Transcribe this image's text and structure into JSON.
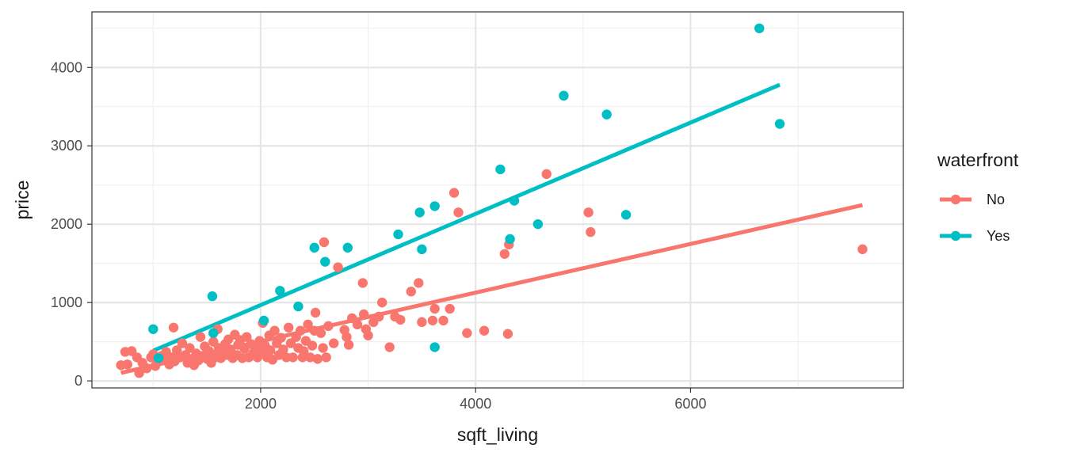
{
  "chart_data": {
    "type": "scatter",
    "title": "",
    "xlabel": "sqft_living",
    "ylabel": "price",
    "xlim": [
      430,
      7980
    ],
    "ylim": [
      -90,
      4710
    ],
    "x_ticks": [
      2000,
      4000,
      6000
    ],
    "y_ticks": [
      0,
      1000,
      2000,
      3000,
      4000
    ],
    "x_tick_labels": [
      "2000",
      "4000",
      "6000"
    ],
    "y_tick_labels": [
      "0",
      "1000",
      "2000",
      "3000",
      "4000"
    ],
    "grid": true,
    "legend": {
      "title": "waterfront",
      "position": "right"
    },
    "series": [
      {
        "name": "No",
        "color": "#F8766D",
        "points": [
          [
            700,
            200
          ],
          [
            740,
            370
          ],
          [
            760,
            210
          ],
          [
            800,
            380
          ],
          [
            850,
            300
          ],
          [
            870,
            100
          ],
          [
            900,
            230
          ],
          [
            940,
            160
          ],
          [
            980,
            300
          ],
          [
            1000,
            340
          ],
          [
            1020,
            190
          ],
          [
            1050,
            260
          ],
          [
            1080,
            320
          ],
          [
            1100,
            280
          ],
          [
            1120,
            370
          ],
          [
            1150,
            210
          ],
          [
            1170,
            300
          ],
          [
            1190,
            680
          ],
          [
            1200,
            250
          ],
          [
            1220,
            390
          ],
          [
            1250,
            300
          ],
          [
            1270,
            480
          ],
          [
            1300,
            330
          ],
          [
            1320,
            230
          ],
          [
            1340,
            420
          ],
          [
            1360,
            280
          ],
          [
            1380,
            200
          ],
          [
            1400,
            350
          ],
          [
            1420,
            260
          ],
          [
            1440,
            560
          ],
          [
            1460,
            320
          ],
          [
            1480,
            440
          ],
          [
            1500,
            280
          ],
          [
            1520,
            380
          ],
          [
            1540,
            230
          ],
          [
            1560,
            500
          ],
          [
            1580,
            300
          ],
          [
            1600,
            660
          ],
          [
            1610,
            420
          ],
          [
            1630,
            290
          ],
          [
            1650,
            360
          ],
          [
            1670,
            470
          ],
          [
            1690,
            330
          ],
          [
            1700,
            530
          ],
          [
            1720,
            400
          ],
          [
            1740,
            290
          ],
          [
            1760,
            590
          ],
          [
            1780,
            330
          ],
          [
            1790,
            460
          ],
          [
            1810,
            520
          ],
          [
            1830,
            290
          ],
          [
            1850,
            410
          ],
          [
            1870,
            560
          ],
          [
            1890,
            300
          ],
          [
            1910,
            470
          ],
          [
            1930,
            350
          ],
          [
            1950,
            420
          ],
          [
            1970,
            300
          ],
          [
            1990,
            510
          ],
          [
            2010,
            380
          ],
          [
            2020,
            740
          ],
          [
            2040,
            450
          ],
          [
            2060,
            300
          ],
          [
            2080,
            580
          ],
          [
            2090,
            390
          ],
          [
            2110,
            270
          ],
          [
            2130,
            640
          ],
          [
            2150,
            480
          ],
          [
            2170,
            330
          ],
          [
            2190,
            550
          ],
          [
            2210,
            400
          ],
          [
            2240,
            300
          ],
          [
            2260,
            680
          ],
          [
            2280,
            480
          ],
          [
            2300,
            300
          ],
          [
            2330,
            560
          ],
          [
            2350,
            420
          ],
          [
            2370,
            640
          ],
          [
            2390,
            300
          ],
          [
            2400,
            380
          ],
          [
            2420,
            510
          ],
          [
            2440,
            720
          ],
          [
            2460,
            300
          ],
          [
            2480,
            450
          ],
          [
            2500,
            640
          ],
          [
            2510,
            870
          ],
          [
            2530,
            280
          ],
          [
            2560,
            610
          ],
          [
            2580,
            420
          ],
          [
            2590,
            1770
          ],
          [
            2610,
            300
          ],
          [
            2630,
            700
          ],
          [
            2680,
            480
          ],
          [
            2720,
            1450
          ],
          [
            2780,
            650
          ],
          [
            2800,
            560
          ],
          [
            2820,
            460
          ],
          [
            2850,
            800
          ],
          [
            2900,
            720
          ],
          [
            2950,
            1250
          ],
          [
            2960,
            850
          ],
          [
            2980,
            660
          ],
          [
            3000,
            580
          ],
          [
            3050,
            750
          ],
          [
            3100,
            820
          ],
          [
            3130,
            1000
          ],
          [
            3200,
            430
          ],
          [
            3250,
            820
          ],
          [
            3300,
            780
          ],
          [
            3400,
            1140
          ],
          [
            3470,
            1250
          ],
          [
            3500,
            750
          ],
          [
            3600,
            770
          ],
          [
            3620,
            920
          ],
          [
            3700,
            770
          ],
          [
            3760,
            920
          ],
          [
            3800,
            2400
          ],
          [
            3840,
            2150
          ],
          [
            3920,
            610
          ],
          [
            4080,
            640
          ],
          [
            4270,
            1620
          ],
          [
            4310,
            1740
          ],
          [
            4300,
            600
          ],
          [
            4660,
            2640
          ],
          [
            5050,
            2150
          ],
          [
            5070,
            1900
          ],
          [
            7600,
            1680
          ]
        ]
      },
      {
        "name": "Yes",
        "color": "#00BFC4",
        "points": [
          [
            1000,
            660
          ],
          [
            1050,
            290
          ],
          [
            1550,
            1080
          ],
          [
            1560,
            610
          ],
          [
            2030,
            770
          ],
          [
            2180,
            1150
          ],
          [
            2350,
            950
          ],
          [
            2500,
            1700
          ],
          [
            2600,
            1520
          ],
          [
            2810,
            1700
          ],
          [
            3280,
            1870
          ],
          [
            3480,
            2150
          ],
          [
            3500,
            1680
          ],
          [
            3620,
            2230
          ],
          [
            3620,
            430
          ],
          [
            4230,
            2700
          ],
          [
            4320,
            1810
          ],
          [
            4360,
            2300
          ],
          [
            4580,
            2000
          ],
          [
            4820,
            3640
          ],
          [
            5220,
            3400
          ],
          [
            5400,
            2120
          ],
          [
            6640,
            4500
          ],
          [
            6830,
            3280
          ]
        ]
      }
    ],
    "fit_lines": [
      {
        "name": "No",
        "x": [
          700,
          7600
        ],
        "y": [
          102,
          2244
        ]
      },
      {
        "name": "Yes",
        "x": [
          1000,
          6830
        ],
        "y": [
          385,
          3780
        ]
      }
    ]
  }
}
